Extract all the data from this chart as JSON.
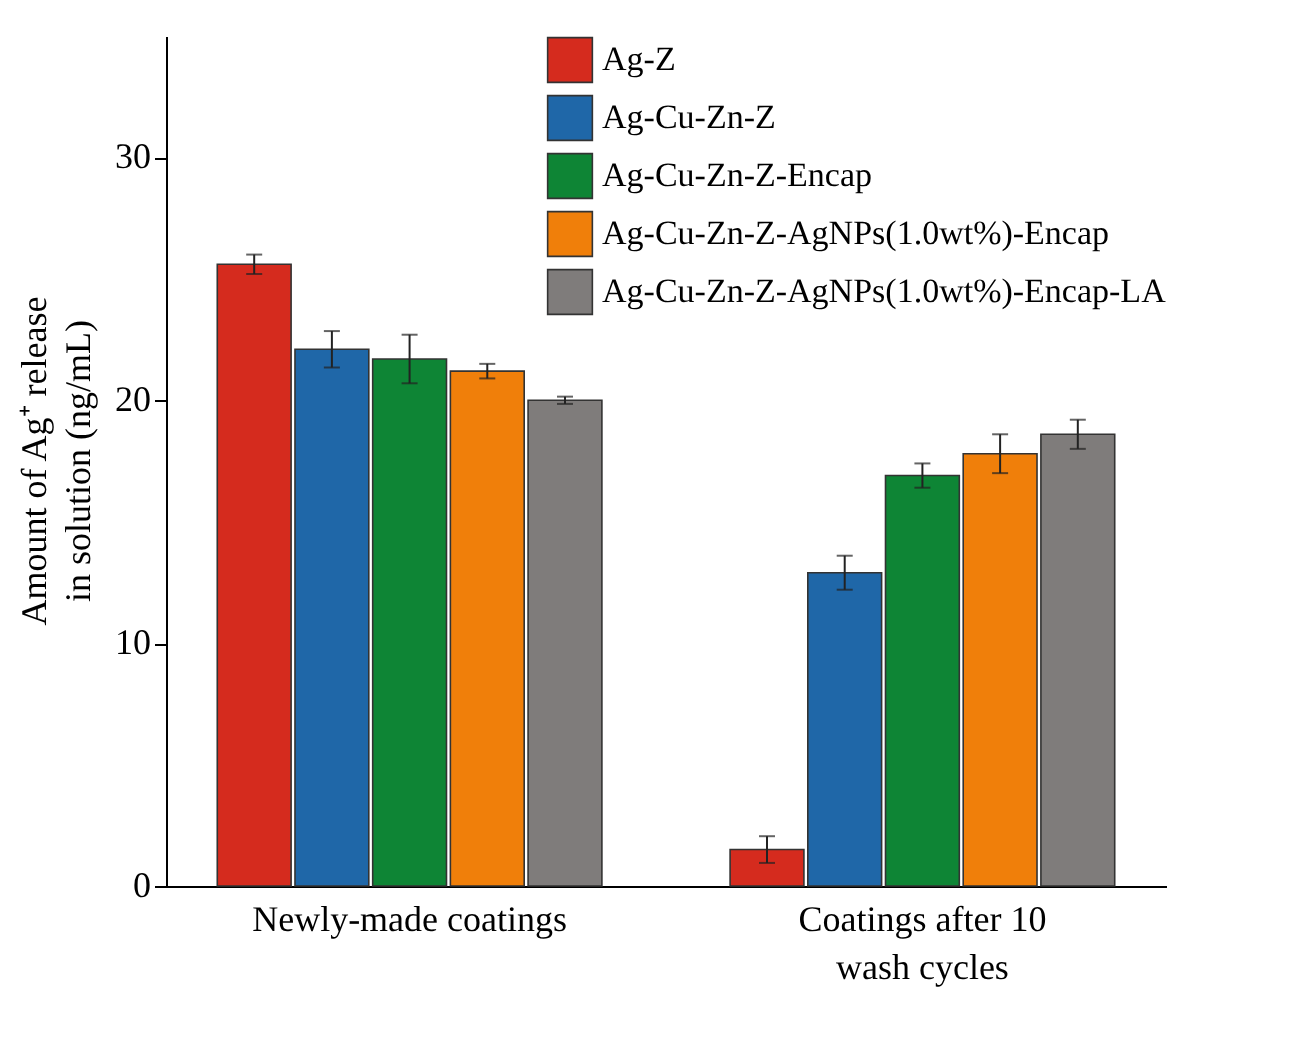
{
  "chart_data": {
    "type": "bar",
    "ylabel": "Amount of Ag⁺ release in solution (ng/mL)",
    "categories": [
      "Newly-made coatings",
      "Coatings after 10 wash cycles"
    ],
    "series": [
      {
        "name": "Ag-Z",
        "color": "#d52b1e",
        "values": [
          25.6,
          1.5
        ],
        "errors": [
          0.4,
          0.55
        ]
      },
      {
        "name": "Ag-Cu-Zn-Z",
        "color": "#1f67a8",
        "values": [
          22.1,
          12.9
        ],
        "errors": [
          0.75,
          0.7
        ]
      },
      {
        "name": "Ag-Cu-Zn-Z-Encap",
        "color": "#0e8535",
        "values": [
          21.7,
          16.9
        ],
        "errors": [
          1.0,
          0.5
        ]
      },
      {
        "name": "Ag-Cu-Zn-Z-AgNPs(1.0wt%)-Encap",
        "color": "#f07f0a",
        "values": [
          21.2,
          17.8
        ],
        "errors": [
          0.3,
          0.8
        ]
      },
      {
        "name": "Ag-Cu-Zn-Z-AgNPs(1.0wt%)-Encap-LA",
        "color": "#7f7c7b",
        "values": [
          20.0,
          18.6
        ],
        "errors": [
          0.15,
          0.6
        ]
      }
    ],
    "ylim": [
      0,
      35
    ],
    "yticks": [
      0,
      10,
      20,
      30
    ],
    "grid": false,
    "legend": "top right"
  }
}
